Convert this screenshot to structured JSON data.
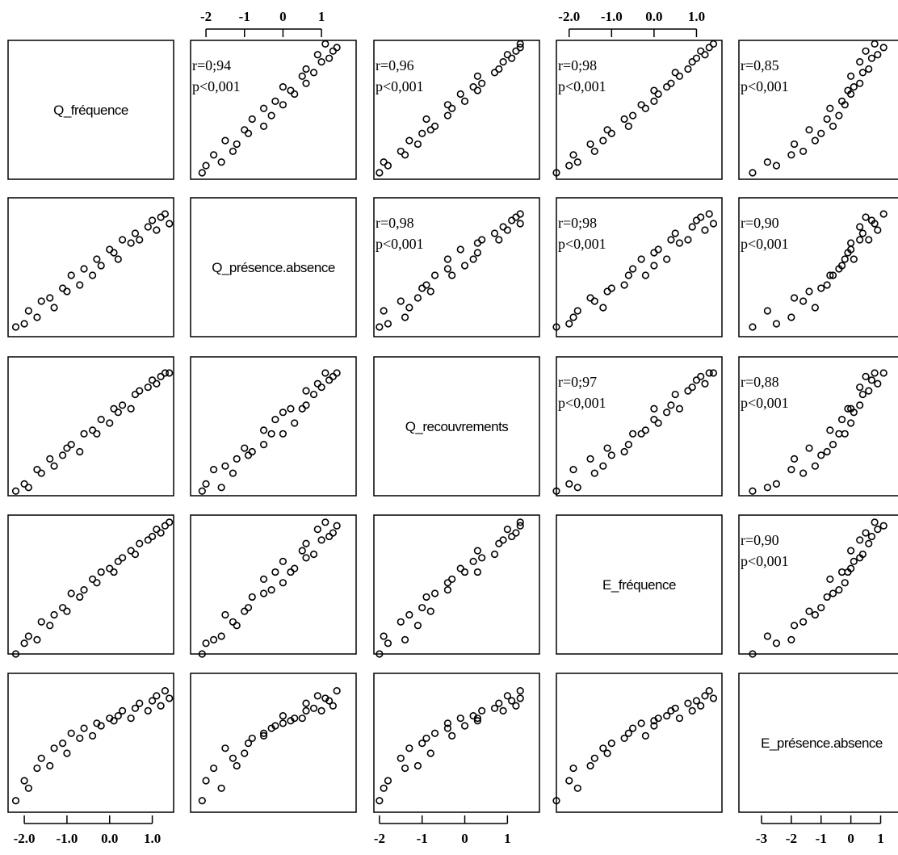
{
  "chart_data": {
    "type": "scatter-matrix",
    "variables": [
      {
        "name": "Q_fréquence",
        "lim": [
          -2.38,
          1.5
        ],
        "ticks": [
          {
            "value": -2,
            "label": "-2.0"
          },
          {
            "value": -1,
            "label": "-1.0"
          },
          {
            "value": 0,
            "label": "0.0"
          },
          {
            "value": 1,
            "label": "1.0"
          }
        ],
        "values": [
          -2.2,
          -2.0,
          -1.9,
          -1.7,
          -1.6,
          -1.4,
          -1.3,
          -1.1,
          -1.0,
          -0.9,
          -0.7,
          -0.6,
          -0.4,
          -0.3,
          -0.2,
          0.0,
          0.1,
          0.2,
          0.3,
          0.5,
          0.6,
          0.7,
          0.9,
          1.0,
          1.1,
          1.2,
          1.3,
          1.4
        ]
      },
      {
        "name": "Q_présence.absence",
        "lim": [
          -2.4,
          1.9
        ],
        "ticks": [
          -2,
          -1,
          0,
          1
        ],
        "values": [
          -2.1,
          -2.0,
          -1.6,
          -1.8,
          -1.3,
          -1.2,
          -1.5,
          -0.9,
          -1.0,
          -0.5,
          -0.8,
          -0.3,
          -0.5,
          0.0,
          -0.2,
          0.3,
          0.2,
          0.0,
          0.6,
          0.5,
          0.8,
          0.6,
          1.0,
          1.2,
          0.9,
          1.3,
          1.4,
          1.1
        ]
      },
      {
        "name": "Q_recouvrements",
        "lim": [
          -2.13,
          1.75
        ],
        "ticks": [
          -2,
          -1,
          0,
          1
        ],
        "values": [
          -2.0,
          -1.8,
          -1.9,
          -1.4,
          -1.5,
          -1.1,
          -1.3,
          -1.0,
          -0.8,
          -0.7,
          -0.9,
          -0.4,
          -0.3,
          -0.4,
          0.0,
          -0.1,
          0.3,
          0.2,
          0.4,
          0.3,
          0.7,
          0.8,
          0.9,
          1.1,
          1.0,
          1.2,
          1.3,
          1.3
        ]
      },
      {
        "name": "E_fréquence",
        "lim": [
          -2.3,
          1.6
        ],
        "ticks": [
          {
            "value": -2,
            "label": "-2.0"
          },
          {
            "value": -1,
            "label": "-1.0"
          },
          {
            "value": 0,
            "label": "0.0"
          },
          {
            "value": 1,
            "label": "1.0"
          }
        ],
        "values": [
          -2.3,
          -2.0,
          -1.8,
          -1.9,
          -1.4,
          -1.5,
          -1.2,
          -1.0,
          -1.1,
          -0.6,
          -0.7,
          -0.5,
          -0.2,
          -0.3,
          0.0,
          0.1,
          0.0,
          0.3,
          0.4,
          0.6,
          0.5,
          0.8,
          0.9,
          1.0,
          1.2,
          1.1,
          1.3,
          1.4
        ]
      },
      {
        "name": "E_présence.absence",
        "lim": [
          -3.76,
          1.8
        ],
        "ticks": [
          -3,
          -2,
          -1,
          0,
          1
        ],
        "values": [
          -3.3,
          -2.5,
          -2.8,
          -2.0,
          -1.6,
          -1.9,
          -1.2,
          -1.0,
          -1.4,
          -0.6,
          -0.8,
          -0.4,
          -0.7,
          -0.2,
          -0.3,
          0.0,
          -0.1,
          0.1,
          0.3,
          0.0,
          0.4,
          0.6,
          0.3,
          0.7,
          0.9,
          0.5,
          1.1,
          0.8
        ]
      }
    ],
    "top_axes": [
      1,
      3
    ],
    "bottom_axes": [
      0,
      2,
      4
    ],
    "correlations": [
      {
        "r": "r=0;94",
        "p": "p<0,001"
      },
      {
        "r": "r=0,96",
        "p": "p<0,001"
      },
      {
        "r": "r=0;98",
        "p": "p<0,001"
      },
      {
        "r": "r=0,85",
        "p": "p<0,001"
      },
      {
        "r": "r=0,98",
        "p": "p<0,001"
      },
      {
        "r": "r=0;98",
        "p": "p<0,001"
      },
      {
        "r": "r=0,90",
        "p": "p<0,001"
      },
      {
        "r": "r=0;97",
        "p": "p<0,001"
      },
      {
        "r": "r=0,88",
        "p": "p<0,001"
      },
      {
        "r": "r=0,90",
        "p": "p<0,001"
      }
    ],
    "marker_color": "#000000"
  }
}
